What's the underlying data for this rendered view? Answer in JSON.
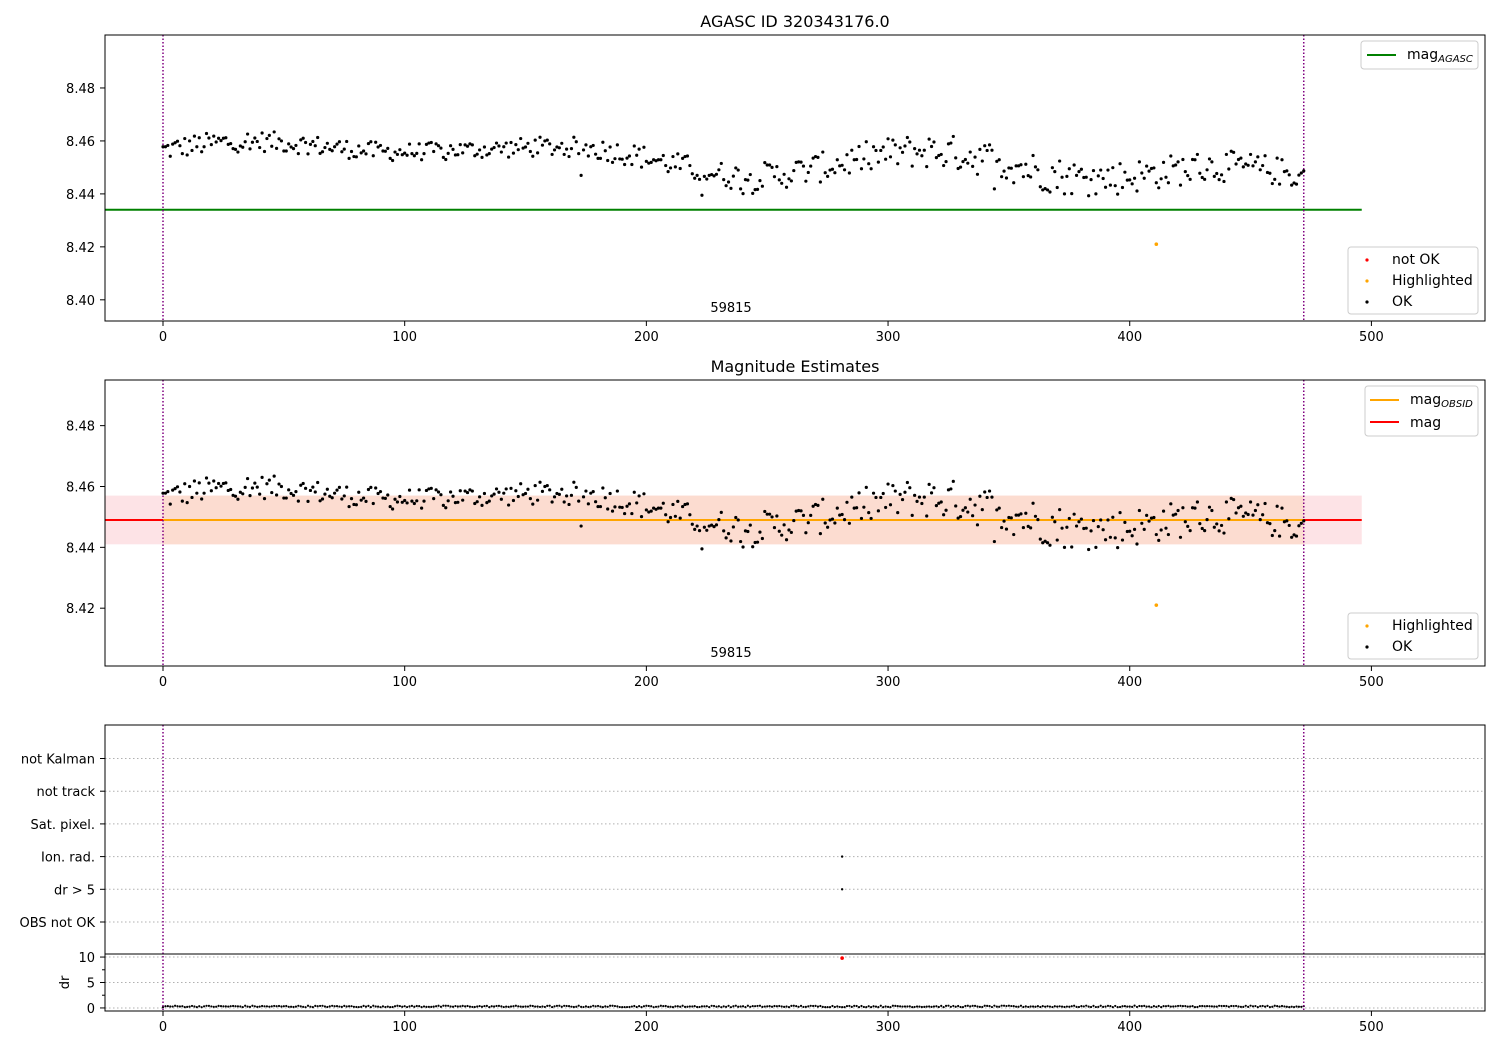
{
  "chart_data": [
    {
      "type": "scatter",
      "title": "AGASC ID 320343176.0",
      "annotation": "59815",
      "xlim": [
        -24,
        547
      ],
      "ylim": [
        8.392,
        8.5
      ],
      "xticks": [
        0,
        100,
        200,
        300,
        400,
        500
      ],
      "yticks": [
        8.4,
        8.42,
        8.44,
        8.46,
        8.48
      ],
      "vlines": [
        0,
        472
      ],
      "hlines": [
        {
          "name": "mag_AGASC",
          "y": 8.434,
          "x_start": -24,
          "x_end": 496,
          "color": "#008000"
        }
      ],
      "series": [
        {
          "name": "not OK",
          "color": "#ff0000",
          "x": [],
          "y": []
        },
        {
          "name": "Highlighted",
          "color": "#ffa500",
          "x": [
            411
          ],
          "y": [
            8.421
          ]
        },
        {
          "name": "OK",
          "color": "#000000",
          "x_start": 0,
          "x_end": 472,
          "mean": 8.449,
          "low_envelope": [
            8.448,
            8.452,
            8.44,
            8.438,
            8.434
          ],
          "high_envelope": [
            8.465,
            8.465,
            8.46,
            8.467,
            8.455
          ]
        }
      ],
      "legend_top": [
        "mag_AGASC"
      ],
      "legend_bottom": [
        "not OK",
        "Highlighted",
        "OK"
      ]
    },
    {
      "type": "scatter",
      "title": "Magnitude Estimates",
      "annotation": "59815",
      "xlim": [
        -24,
        547
      ],
      "ylim": [
        8.401,
        8.495
      ],
      "xticks": [
        0,
        100,
        200,
        300,
        400,
        500
      ],
      "yticks": [
        8.42,
        8.44,
        8.46,
        8.48
      ],
      "vlines": [
        0,
        472
      ],
      "band": {
        "y_low": 8.441,
        "y_high": 8.457,
        "x_start": -24,
        "x_end": 496,
        "colors": [
          "#fcdcd0",
          "#fde3e6"
        ]
      },
      "hlines": [
        {
          "name": "mag",
          "y": 8.449,
          "x_start": -24,
          "x_end": 496,
          "color": "#ff0000"
        },
        {
          "name": "mag_OBSID",
          "y": 8.449,
          "x_start": 0,
          "x_end": 472,
          "color": "#ffa500"
        }
      ],
      "series": [
        {
          "name": "Highlighted",
          "color": "#ffa500",
          "x": [
            411
          ],
          "y": [
            8.421
          ]
        },
        {
          "name": "OK",
          "color": "#000000"
        }
      ],
      "legend_top": [
        "mag_OBSID",
        "mag"
      ],
      "legend_bottom": [
        "Highlighted",
        "OK"
      ]
    },
    {
      "type": "scatter",
      "title": "",
      "xlim": [
        -24,
        547
      ],
      "xticks": [
        0,
        100,
        200,
        300,
        400,
        500
      ],
      "vlines": [
        0,
        472
      ],
      "flag_categories": [
        "not Kalman",
        "not track",
        "Sat. pixel.",
        "Ion. rad.",
        "dr > 5",
        "OBS not OK"
      ],
      "flag_points": [
        {
          "category": "Ion. rad.",
          "x": 281
        },
        {
          "category": "dr > 5",
          "x": 281
        }
      ],
      "dr": {
        "ylabel": "dr",
        "yticks": [
          0,
          5,
          10
        ],
        "ylim": [
          -0.6,
          10.6
        ],
        "outlier": {
          "x": 281,
          "y": 9.8
        },
        "baseline": 0.3
      }
    }
  ],
  "legend": {
    "mag_main": "mag",
    "agasc_sub": "AGASC",
    "obsid_sub": "OBSID",
    "not_ok": "not OK",
    "highlighted": "Highlighted",
    "ok": "OK"
  },
  "colors": {
    "ok": "#000000",
    "highlighted": "#ffa500",
    "not_ok": "#ff0000",
    "agasc_line": "#008000",
    "mag_line": "#ff0000",
    "obsid_line": "#ffa500",
    "vline": "#800080"
  }
}
